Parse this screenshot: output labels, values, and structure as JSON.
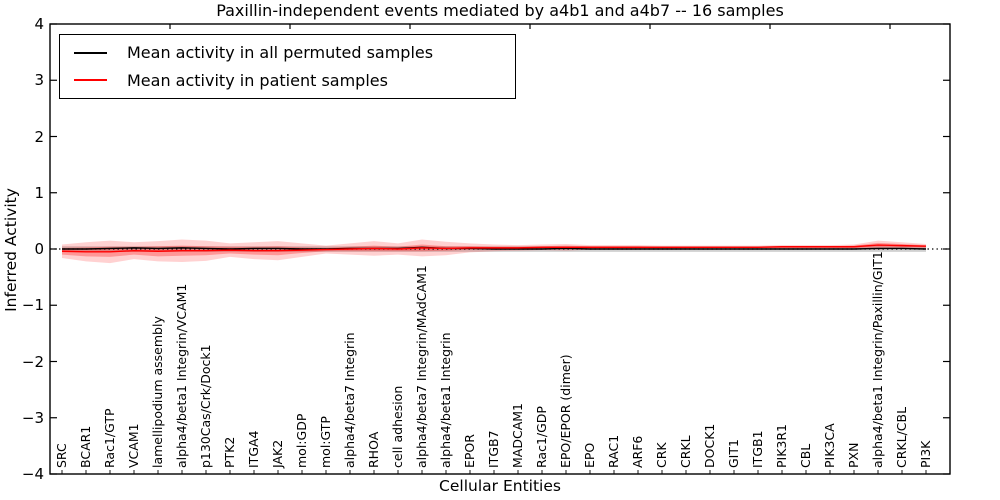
{
  "chart_data": {
    "type": "line",
    "title": "Paxillin-independent events mediated by a4b1 and a4b7 -- 16 samples",
    "xlabel": "Cellular Entities",
    "ylabel": "Inferred Activity",
    "ylim": [
      -4,
      4
    ],
    "x_axis_range": [
      0,
      37.5
    ],
    "ytick_values": [
      4,
      3,
      2,
      1,
      0,
      -1,
      -2,
      -3,
      -4
    ],
    "ytick_labels": [
      "4",
      "3",
      "2",
      "1",
      "0",
      "−1",
      "−2",
      "−3",
      "−4"
    ],
    "x_top_tick_positions": [
      5,
      10,
      15,
      20,
      25,
      30,
      35
    ],
    "grid": false,
    "legend_position": "upper left",
    "zero_line": 0,
    "frame_color": "#000000",
    "categories": [
      "SRC",
      "BCAR1",
      "Rac1/GTP",
      "VCAM1",
      "lamellipodium assembly",
      "alpha4/beta1 Integrin/VCAM1",
      "p130Cas/Crk/Dock1",
      "PTK2",
      "ITGA4",
      "JAK2",
      "mol:GDP",
      "mol:GTP",
      "alpha4/beta7 Integrin",
      "RHOA",
      "cell adhesion",
      "alpha4/beta7 Integrin/MAdCAM1",
      "alpha4/beta1 Integrin",
      "EPOR",
      "ITGB7",
      "MADCAM1",
      "Rac1/GDP",
      "EPO/EPOR (dimer)",
      "EPO",
      "RAC1",
      "ARF6",
      "CRK",
      "CRKL",
      "DOCK1",
      "GIT1",
      "ITGB1",
      "PIK3R1",
      "CBL",
      "PIK3CA",
      "PXN",
      "alpha4/beta1 Integrin/Paxillin/GIT1",
      "CRKL/CBL",
      "PI3K"
    ],
    "series": [
      {
        "name": "Mean activity in all permuted samples",
        "color": "#000000",
        "values": [
          0.0,
          0.0,
          0.01,
          0.02,
          0.01,
          0.02,
          0.01,
          0.0,
          0.01,
          0.01,
          0.0,
          0.0,
          0.01,
          0.01,
          0.01,
          0.03,
          0.01,
          0.01,
          0.0,
          0.0,
          0.0,
          0.01,
          0.0,
          0.0,
          0.0,
          0.0,
          0.0,
          0.0,
          0.0,
          0.0,
          0.0,
          0.0,
          0.0,
          0.0,
          0.01,
          0.01,
          0.0
        ]
      },
      {
        "name": "Mean activity in patient samples",
        "color": "#ff0000",
        "values": [
          -0.04,
          -0.05,
          -0.05,
          -0.03,
          -0.04,
          -0.03,
          -0.03,
          -0.02,
          -0.03,
          -0.03,
          -0.02,
          -0.01,
          0.0,
          0.01,
          0.0,
          0.02,
          0.01,
          0.02,
          0.02,
          0.02,
          0.03,
          0.03,
          0.03,
          0.03,
          0.03,
          0.03,
          0.03,
          0.03,
          0.03,
          0.03,
          0.04,
          0.04,
          0.04,
          0.04,
          0.07,
          0.06,
          0.05
        ]
      }
    ],
    "bands": [
      {
        "name": "permuted-spread",
        "color": "#999999",
        "opacity": 0.45,
        "upper": [
          0.05,
          0.05,
          0.05,
          0.05,
          0.05,
          0.05,
          0.05,
          0.05,
          0.05,
          0.05,
          0.05,
          0.05,
          0.05,
          0.05,
          0.05,
          0.05,
          0.05,
          0.05,
          0.05,
          0.05,
          0.05,
          0.05,
          0.05,
          0.05,
          0.05,
          0.05,
          0.05,
          0.05,
          0.05,
          0.05,
          0.05,
          0.05,
          0.05,
          0.05,
          0.05,
          0.05,
          0.05
        ],
        "lower": [
          -0.05,
          -0.05,
          -0.05,
          -0.05,
          -0.05,
          -0.05,
          -0.05,
          -0.05,
          -0.05,
          -0.05,
          -0.05,
          -0.05,
          -0.05,
          -0.05,
          -0.05,
          -0.05,
          -0.05,
          -0.05,
          -0.05,
          -0.05,
          -0.05,
          -0.05,
          -0.05,
          -0.05,
          -0.05,
          -0.05,
          -0.05,
          -0.05,
          -0.05,
          -0.05,
          -0.05,
          -0.05,
          -0.05,
          -0.05,
          -0.05,
          -0.05,
          -0.05
        ]
      },
      {
        "name": "patient-spread-outer",
        "color": "#ff0000",
        "opacity": 0.18,
        "upper": [
          0.08,
          0.12,
          0.15,
          0.12,
          0.14,
          0.17,
          0.15,
          0.1,
          0.12,
          0.14,
          0.1,
          0.06,
          0.1,
          0.14,
          0.1,
          0.17,
          0.13,
          0.1,
          0.08,
          0.07,
          0.08,
          0.09,
          0.07,
          0.07,
          0.07,
          0.06,
          0.06,
          0.06,
          0.06,
          0.06,
          0.07,
          0.07,
          0.07,
          0.08,
          0.15,
          0.12,
          0.09
        ],
        "lower": [
          -0.16,
          -0.22,
          -0.25,
          -0.18,
          -0.22,
          -0.23,
          -0.21,
          -0.14,
          -0.18,
          -0.2,
          -0.14,
          -0.08,
          -0.1,
          -0.12,
          -0.1,
          -0.13,
          -0.11,
          -0.06,
          -0.04,
          -0.03,
          -0.02,
          -0.03,
          -0.01,
          -0.01,
          -0.01,
          0.0,
          0.0,
          0.0,
          0.0,
          0.0,
          0.01,
          0.01,
          0.01,
          0.0,
          -0.01,
          0.0,
          0.01
        ]
      },
      {
        "name": "patient-spread-inner",
        "color": "#ff0000",
        "opacity": 0.28,
        "upper": [
          0.02,
          0.03,
          0.04,
          0.04,
          0.05,
          0.06,
          0.05,
          0.04,
          0.04,
          0.05,
          0.03,
          0.02,
          0.04,
          0.06,
          0.04,
          0.08,
          0.05,
          0.05,
          0.04,
          0.04,
          0.05,
          0.06,
          0.05,
          0.05,
          0.05,
          0.04,
          0.04,
          0.04,
          0.04,
          0.04,
          0.05,
          0.05,
          0.05,
          0.06,
          0.11,
          0.09,
          0.07
        ],
        "lower": [
          -0.1,
          -0.13,
          -0.14,
          -0.1,
          -0.13,
          -0.12,
          -0.11,
          -0.08,
          -0.1,
          -0.11,
          -0.07,
          -0.04,
          -0.04,
          -0.04,
          -0.04,
          -0.04,
          -0.03,
          -0.01,
          0.0,
          0.0,
          0.01,
          0.0,
          0.01,
          0.01,
          0.01,
          0.01,
          0.01,
          0.02,
          0.02,
          0.02,
          0.02,
          0.02,
          0.02,
          0.02,
          0.03,
          0.03,
          0.03
        ]
      }
    ]
  }
}
